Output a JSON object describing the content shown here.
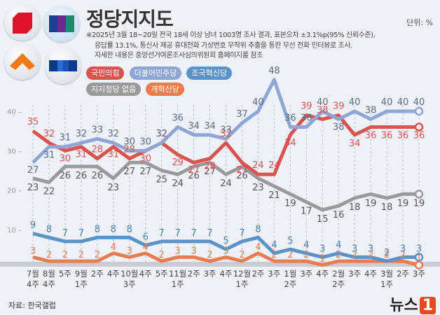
{
  "header": {
    "title": "정당지지도",
    "unit": "단위: %",
    "notes": [
      "※2025년 3월 18~20일 전국 18세 이상 남녀 1003명 조사 결과, 표본오차 ±3.1%p(95% 신뢰수준),",
      "응답률 13.1%, 통신사 제공 휴대전화 가상번호 무작위 추출을 통한 무선 전화 인터뷰로 조사.",
      "자세한 내용은 중앙선거여론조사심의위원회 홈페이지를 참조"
    ]
  },
  "logos": [
    "ppp-logo-icon",
    "democratic-logo-icon",
    "reform-logo-icon",
    "rebuilding-logo-icon"
  ],
  "footer": {
    "source": "자료: 한국갤럽",
    "brand": "뉴스",
    "brand_mark": "1"
  },
  "colors": {
    "ppp": "#d9534f",
    "dem": "#8fa6d4",
    "none": "#9a9a9a",
    "reb": "#5b93c9",
    "ref": "#ea7d4f",
    "dem_label": "#5e6a86",
    "none_label": "#555555"
  },
  "chart_data": {
    "type": "line",
    "title": "정당지지도",
    "xlabel": "",
    "ylabel": "단위: %",
    "ylim": [
      0,
      48
    ],
    "yticks": [
      10,
      20,
      30,
      40
    ],
    "grid": "vertical dashed",
    "legend": "top-left",
    "x": [
      [
        "7월",
        "4주"
      ],
      [
        "8월",
        "4주"
      ],
      [
        "5주",
        ""
      ],
      [
        "9월",
        "1주"
      ],
      [
        "2주",
        ""
      ],
      [
        "4주",
        ""
      ],
      [
        "10월",
        "3주"
      ],
      [
        "4주",
        ""
      ],
      [
        "5주",
        ""
      ],
      [
        "11월",
        "1주"
      ],
      [
        "2주",
        ""
      ],
      [
        "3주",
        ""
      ],
      [
        "4주",
        ""
      ],
      [
        "12월",
        "1주"
      ],
      [
        "2주",
        ""
      ],
      [
        "3주",
        ""
      ],
      [
        "1월",
        "2주"
      ],
      [
        "3주",
        ""
      ],
      [
        "4주",
        ""
      ],
      [
        "2월",
        "2주"
      ],
      [
        "3주",
        ""
      ],
      [
        "4주",
        ""
      ],
      [
        "3월",
        "1주"
      ],
      [
        "2주",
        ""
      ],
      [
        "3주",
        ""
      ]
    ],
    "series": [
      {
        "key": "ppp",
        "name": "국민의힘",
        "values": [
          35,
          32,
          30,
          31,
          28,
          31,
          28,
          30,
          32,
          29,
          27,
          28,
          32,
          27,
          24,
          24,
          34,
          39,
          38,
          39,
          34,
          36,
          36,
          36,
          36
        ]
      },
      {
        "key": "dem",
        "name": "더불어민주당",
        "values": [
          27,
          31,
          31,
          32,
          33,
          32,
          30,
          30,
          32,
          36,
          34,
          34,
          33,
          37,
          40,
          48,
          36,
          36,
          40,
          38,
          40,
          38,
          40,
          40,
          40
        ]
      },
      {
        "key": "reb",
        "name": "조국혁신당",
        "values": [
          9,
          8,
          7,
          7,
          8,
          8,
          8,
          6,
          7,
          7,
          7,
          7,
          5,
          7,
          8,
          4,
          5,
          4,
          3,
          4,
          3,
          3,
          2,
          3,
          3
        ]
      },
      {
        "key": "none",
        "name": "지지정당 없음",
        "values": [
          23,
          22,
          26,
          26,
          26,
          23,
          27,
          27,
          25,
          24,
          26,
          27,
          24,
          26,
          23,
          21,
          19,
          17,
          15,
          16,
          18,
          19,
          18,
          19,
          19
        ]
      },
      {
        "key": "ref",
        "name": "개혁신당",
        "values": [
          3,
          2,
          2,
          2,
          2,
          4,
          3,
          4,
          2,
          3,
          3,
          2,
          3,
          2,
          4,
          2,
          2,
          2,
          1,
          2,
          2,
          2,
          2,
          2,
          1
        ]
      }
    ]
  }
}
